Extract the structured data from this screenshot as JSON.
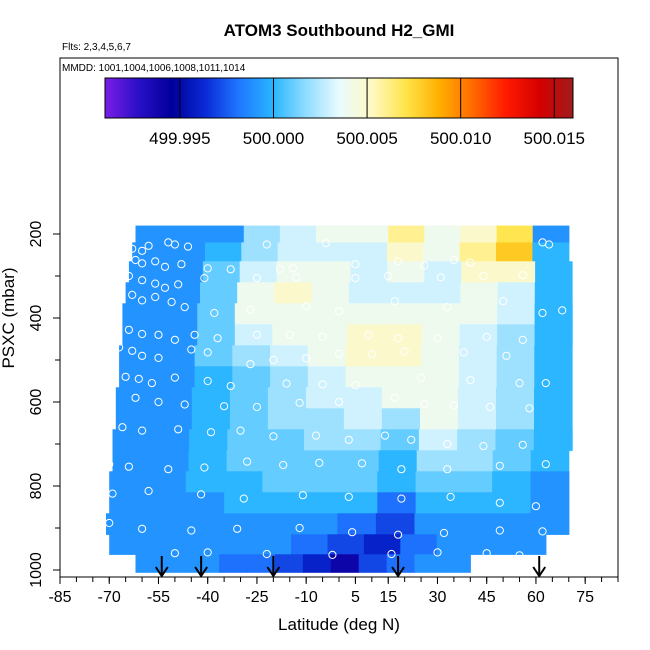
{
  "chart_data": {
    "type": "heatmap",
    "title": "ATOM3 Southbound H2_GMI",
    "subtitle_flights": "Flts: 2,3,4,5,6,7",
    "subtitle_dates": "MMDD: 1001,1004,1006,1008,1011,1014",
    "xlabel": "Latitude (deg N)",
    "ylabel": "PSXC (mbar)",
    "xlim": [
      -85,
      85
    ],
    "ylim": [
      1000,
      0
    ],
    "x_ticks": [
      "-85",
      "-70",
      "-55",
      "-40",
      "-25",
      "-10",
      "5",
      "15",
      "30",
      "45",
      "60",
      "75"
    ],
    "x_tick_values": [
      -85,
      -70,
      -55,
      -40,
      -25,
      -10,
      5,
      15,
      30,
      45,
      60,
      75
    ],
    "y_ticks": [
      "200",
      "400",
      "600",
      "800",
      "1000"
    ],
    "y_tick_values": [
      200,
      400,
      600,
      800,
      1000
    ],
    "colorbar": {
      "range": [
        499.991,
        500.016
      ],
      "ticks": [
        "499.995",
        "500.000",
        "500.005",
        "500.010",
        "500.015"
      ],
      "tick_values": [
        499.995,
        500.0,
        500.005,
        500.01,
        500.015
      ],
      "colors": [
        "#7a1fe6",
        "#2a0fc8",
        "#000099",
        "#0a2ad6",
        "#1f77ff",
        "#27b4ff",
        "#8fdcff",
        "#e9fbff",
        "#fff9c2",
        "#ffe44a",
        "#ffb000",
        "#ff6a00",
        "#ff1a00",
        "#d40000",
        "#a01c1c"
      ]
    },
    "arrows_latitude": [
      -54,
      -42,
      -20,
      18,
      61
    ],
    "layers": [
      {
        "p": 200,
        "lat_range": [
          -62,
          70
        ],
        "values": [
          499.999,
          499.999,
          499.999,
          500.002,
          500.003,
          500.004,
          500.004,
          500.006,
          500.004,
          500.005,
          500.007,
          499.999
        ]
      },
      {
        "p": 240,
        "lat_range": [
          -63,
          70
        ],
        "values": [
          499.999,
          499.999,
          500.0,
          500.002,
          500.003,
          500.003,
          500.003,
          500.005,
          500.004,
          500.006,
          500.008,
          500.0
        ]
      },
      {
        "p": 290,
        "lat_range": [
          -64,
          71
        ],
        "values": [
          499.999,
          499.999,
          500.001,
          500.003,
          500.004,
          500.004,
          500.003,
          500.004,
          500.003,
          500.005,
          500.005,
          500.0
        ]
      },
      {
        "p": 340,
        "lat_range": [
          -65,
          71
        ],
        "values": [
          499.999,
          499.999,
          500.001,
          500.004,
          500.005,
          500.004,
          500.003,
          500.003,
          500.003,
          500.004,
          500.003,
          500.0
        ]
      },
      {
        "p": 390,
        "lat_range": [
          -66,
          71
        ],
        "values": [
          499.999,
          499.999,
          500.001,
          500.004,
          500.004,
          500.004,
          500.004,
          500.004,
          500.004,
          500.004,
          500.003,
          500.0
        ]
      },
      {
        "p": 440,
        "lat_range": [
          -66,
          71
        ],
        "values": [
          499.999,
          499.999,
          500.001,
          500.003,
          500.004,
          500.004,
          500.005,
          500.005,
          500.004,
          500.003,
          500.002,
          500.0
        ]
      },
      {
        "p": 490,
        "lat_range": [
          -67,
          71
        ],
        "values": [
          499.999,
          499.999,
          500.001,
          500.002,
          500.003,
          500.004,
          500.005,
          500.005,
          500.004,
          500.003,
          500.002,
          500.0
        ]
      },
      {
        "p": 540,
        "lat_range": [
          -67,
          71
        ],
        "values": [
          499.999,
          499.999,
          500.0,
          500.001,
          500.002,
          500.003,
          500.004,
          500.004,
          500.004,
          500.003,
          500.002,
          500.0
        ]
      },
      {
        "p": 590,
        "lat_range": [
          -68,
          71
        ],
        "values": [
          499.999,
          499.999,
          500.0,
          500.001,
          500.002,
          500.003,
          500.003,
          500.004,
          500.004,
          500.003,
          500.002,
          500.0
        ]
      },
      {
        "p": 640,
        "lat_range": [
          -68,
          71
        ],
        "values": [
          499.999,
          499.999,
          500.0,
          500.001,
          500.002,
          500.002,
          500.003,
          500.002,
          500.004,
          500.003,
          500.002,
          500.0
        ]
      },
      {
        "p": 690,
        "lat_range": [
          -69,
          71
        ],
        "values": [
          499.999,
          499.999,
          500.0,
          500.001,
          500.001,
          500.002,
          500.002,
          500.001,
          500.003,
          500.002,
          500.001,
          500.0
        ]
      },
      {
        "p": 740,
        "lat_range": [
          -69,
          70
        ],
        "values": [
          499.999,
          499.999,
          500.0,
          500.001,
          500.001,
          500.001,
          500.001,
          500.0,
          500.002,
          500.002,
          500.001,
          500.0
        ]
      },
      {
        "p": 790,
        "lat_range": [
          -70,
          70
        ],
        "values": [
          499.999,
          499.999,
          500.0,
          500.0,
          500.001,
          500.001,
          500.001,
          500.0,
          500.001,
          500.001,
          500.0,
          499.999
        ]
      },
      {
        "p": 840,
        "lat_range": [
          -70,
          70
        ],
        "values": [
          499.999,
          499.999,
          499.999,
          500.0,
          500.0,
          500.0,
          500.0,
          499.998,
          500.0,
          500.0,
          500.0,
          499.999
        ]
      },
      {
        "p": 890,
        "lat_range": [
          -71,
          70
        ],
        "values": [
          499.999,
          499.999,
          499.999,
          499.999,
          499.999,
          499.999,
          499.998,
          499.997,
          499.999,
          499.999,
          499.999,
          499.999
        ]
      },
      {
        "p": 940,
        "lat_range": [
          -70,
          63
        ],
        "values": [
          499.999,
          499.999,
          499.999,
          499.999,
          499.999,
          499.998,
          499.997,
          499.996,
          499.998,
          499.999,
          499.999,
          499.999
        ]
      },
      {
        "p": 985,
        "lat_range": [
          -62,
          40
        ],
        "values": [
          499.999,
          499.999,
          499.999,
          499.998,
          499.998,
          499.997,
          499.996,
          499.994,
          499.997,
          499.998,
          499.999,
          499.999
        ]
      }
    ],
    "points": [
      [
        -79,
        225
      ],
      [
        -74,
        225
      ],
      [
        -68,
        227
      ],
      [
        -66,
        227
      ],
      [
        -63,
        235
      ],
      [
        -60,
        240
      ],
      [
        -58,
        228
      ],
      [
        -52,
        220
      ],
      [
        -50,
        225
      ],
      [
        -46,
        230
      ],
      [
        -22,
        225
      ],
      [
        -4,
        222
      ],
      [
        62,
        220
      ],
      [
        64,
        225
      ],
      [
        -69,
        258
      ],
      [
        -66,
        258
      ],
      [
        -62,
        262
      ],
      [
        -60,
        270
      ],
      [
        -56,
        265
      ],
      [
        -53,
        278
      ],
      [
        -48,
        272
      ],
      [
        -40,
        282
      ],
      [
        -33,
        284
      ],
      [
        -18,
        283
      ],
      [
        -14,
        282
      ],
      [
        5,
        272
      ],
      [
        18,
        265
      ],
      [
        26,
        275
      ],
      [
        35,
        262
      ],
      [
        40,
        268
      ],
      [
        -64,
        300
      ],
      [
        -60,
        310
      ],
      [
        -56,
        318
      ],
      [
        -53,
        328
      ],
      [
        -49,
        320
      ],
      [
        -41,
        305
      ],
      [
        -25,
        305
      ],
      [
        -13,
        303
      ],
      [
        5,
        305
      ],
      [
        15,
        300
      ],
      [
        31,
        303
      ],
      [
        44,
        300
      ],
      [
        56,
        298
      ],
      [
        -67,
        335
      ],
      [
        -63,
        345
      ],
      [
        -60,
        358
      ],
      [
        -56,
        350
      ],
      [
        -51,
        362
      ],
      [
        -47,
        374
      ],
      [
        -38,
        388
      ],
      [
        -27,
        380
      ],
      [
        -10,
        372
      ],
      [
        0,
        384
      ],
      [
        17,
        360
      ],
      [
        33,
        374
      ],
      [
        50,
        360
      ],
      [
        62,
        388
      ],
      [
        68,
        382
      ],
      [
        -64,
        428
      ],
      [
        -60,
        438
      ],
      [
        -55,
        440
      ],
      [
        -50,
        452
      ],
      [
        -44,
        440
      ],
      [
        -37,
        448
      ],
      [
        -25,
        440
      ],
      [
        -15,
        440
      ],
      [
        -5,
        445
      ],
      [
        9,
        440
      ],
      [
        18,
        448
      ],
      [
        30,
        448
      ],
      [
        45,
        445
      ],
      [
        56,
        452
      ],
      [
        -67,
        470
      ],
      [
        -63,
        478
      ],
      [
        -60,
        490
      ],
      [
        -55,
        495
      ],
      [
        -45,
        475
      ],
      [
        -40,
        482
      ],
      [
        -27,
        510
      ],
      [
        -20,
        500
      ],
      [
        -10,
        496
      ],
      [
        0,
        485
      ],
      [
        10,
        486
      ],
      [
        20,
        480
      ],
      [
        38,
        482
      ],
      [
        51,
        490
      ],
      [
        -69,
        532
      ],
      [
        -65,
        540
      ],
      [
        -61,
        545
      ],
      [
        -57,
        555
      ],
      [
        -50,
        542
      ],
      [
        -40,
        550
      ],
      [
        -33,
        562
      ],
      [
        -16,
        556
      ],
      [
        -5,
        558
      ],
      [
        5,
        560
      ],
      [
        25,
        542
      ],
      [
        40,
        548
      ],
      [
        55,
        555
      ],
      [
        63,
        555
      ],
      [
        -62,
        590
      ],
      [
        -55,
        600
      ],
      [
        -47,
        606
      ],
      [
        -35,
        610
      ],
      [
        -25,
        612
      ],
      [
        -12,
        602
      ],
      [
        0,
        600
      ],
      [
        17,
        590
      ],
      [
        26,
        605
      ],
      [
        35,
        608
      ],
      [
        46,
        612
      ],
      [
        58,
        615
      ],
      [
        -70,
        655
      ],
      [
        -66,
        660
      ],
      [
        -60,
        668
      ],
      [
        -49,
        665
      ],
      [
        -39,
        672
      ],
      [
        -30,
        668
      ],
      [
        -20,
        682
      ],
      [
        -7,
        680
      ],
      [
        3,
        690
      ],
      [
        14,
        680
      ],
      [
        22,
        690
      ],
      [
        33,
        700
      ],
      [
        44,
        705
      ],
      [
        56,
        702
      ],
      [
        -76,
        735
      ],
      [
        -70,
        748
      ],
      [
        -64,
        754
      ],
      [
        -52,
        760
      ],
      [
        -41,
        756
      ],
      [
        -28,
        742
      ],
      [
        -17,
        750
      ],
      [
        -6,
        745
      ],
      [
        7,
        746
      ],
      [
        19,
        760
      ],
      [
        33,
        760
      ],
      [
        49,
        752
      ],
      [
        63,
        748
      ],
      [
        -76,
        825
      ],
      [
        -69,
        818
      ],
      [
        -58,
        812
      ],
      [
        -42,
        820
      ],
      [
        -29,
        830
      ],
      [
        -11,
        822
      ],
      [
        3,
        826
      ],
      [
        19,
        830
      ],
      [
        34,
        826
      ],
      [
        49,
        840
      ],
      [
        60,
        848
      ],
      [
        -78,
        880
      ],
      [
        -70,
        888
      ],
      [
        -60,
        902
      ],
      [
        -45,
        906
      ],
      [
        -31,
        902
      ],
      [
        -12,
        900
      ],
      [
        4,
        910
      ],
      [
        18,
        916
      ],
      [
        32,
        912
      ],
      [
        49,
        906
      ],
      [
        62,
        908
      ],
      [
        -50,
        960
      ],
      [
        -40,
        958
      ],
      [
        -22,
        962
      ],
      [
        -2,
        964
      ],
      [
        16,
        962
      ],
      [
        30,
        958
      ],
      [
        45,
        960
      ],
      [
        55,
        965
      ]
    ]
  }
}
